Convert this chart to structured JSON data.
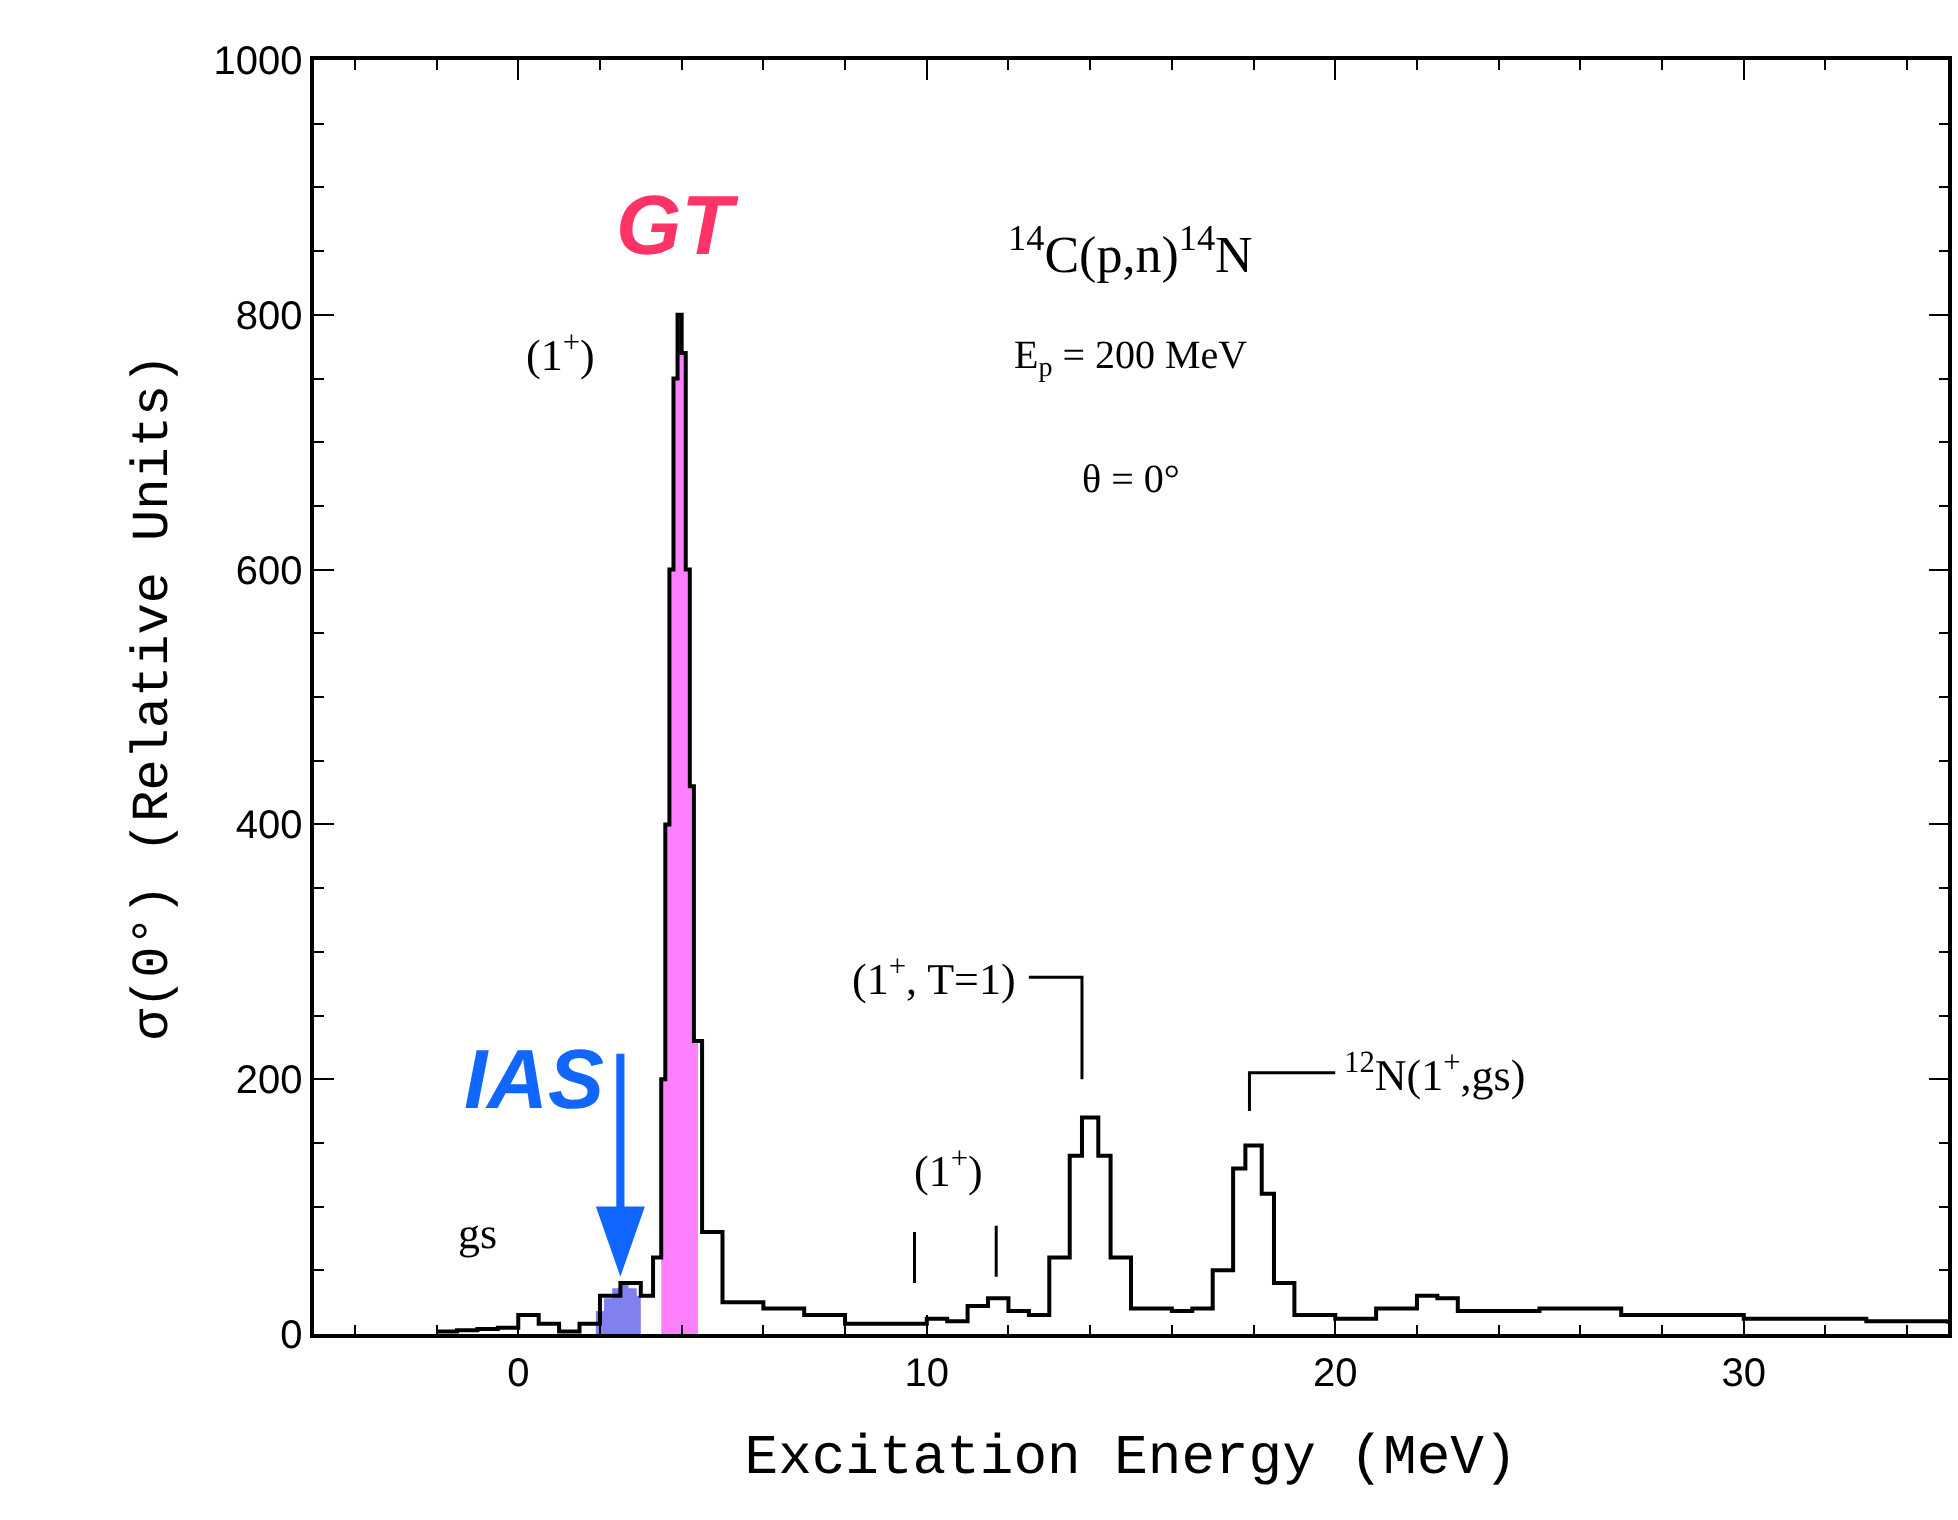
{
  "chart_data": {
    "type": "step",
    "xlabel": "Excitation Energy (MeV)",
    "ylabel": "σ(0°) (Relative Units)",
    "xlim": [
      -5,
      35
    ],
    "xticks": [
      0,
      10,
      20,
      30
    ],
    "ylim": [
      0,
      1000
    ],
    "yticks": [
      0,
      200,
      400,
      600,
      800,
      1000
    ],
    "marker": "none",
    "series": [
      {
        "type": "area",
        "color": "#8080f0",
        "x": [
          1.9,
          2.1,
          2.3,
          2.5,
          2.7,
          2.9,
          3.0
        ],
        "values": [
          18,
          28,
          36,
          40,
          36,
          30,
          30
        ]
      },
      {
        "type": "area",
        "color": "#ff80ff",
        "x": [
          3.5,
          3.6,
          3.7,
          3.8,
          3.9,
          4.0,
          4.1,
          4.2,
          4.3,
          4.4
        ],
        "values": [
          200,
          400,
          600,
          750,
          790,
          770,
          600,
          430,
          230,
          230
        ]
      },
      {
        "color": "#000000",
        "x": [
          -2,
          -1.5,
          -1,
          -0.5,
          0,
          0.5,
          1,
          1.5,
          2,
          2.5,
          3,
          3.3,
          3.5,
          3.6,
          3.7,
          3.8,
          3.9,
          4.0,
          4.1,
          4.2,
          4.3,
          4.5,
          5,
          6,
          7,
          8,
          9,
          10,
          10.5,
          11,
          11.5,
          12,
          12.5,
          13,
          13.5,
          13.8,
          14.2,
          14.5,
          15,
          16,
          16.5,
          17,
          17.5,
          17.8,
          18.2,
          18.5,
          19,
          20,
          21,
          22,
          22.5,
          23,
          25,
          27,
          30,
          33,
          35
        ],
        "values": [
          2,
          3,
          4,
          5,
          15,
          8,
          2,
          8,
          30,
          40,
          30,
          60,
          200,
          400,
          600,
          750,
          800,
          770,
          600,
          430,
          230,
          80,
          25,
          20,
          15,
          8,
          8,
          12,
          10,
          22,
          28,
          18,
          15,
          60,
          140,
          170,
          140,
          60,
          20,
          18,
          20,
          50,
          130,
          148,
          110,
          40,
          15,
          12,
          20,
          30,
          28,
          18,
          20,
          15,
          12,
          10,
          8
        ]
      }
    ],
    "annotations": [
      "GT",
      "IAS",
      "(1$^{+}$)",
      "gs",
      "(1$^{+}$, T=1)",
      "(1$^{+}$)",
      "$^{12}$N(1$^{+}$,gs)",
      "$^{14}$C(p,n)$^{14}$N",
      "E$_{p}$ = 200 MeV",
      "θ = 0°"
    ]
  }
}
